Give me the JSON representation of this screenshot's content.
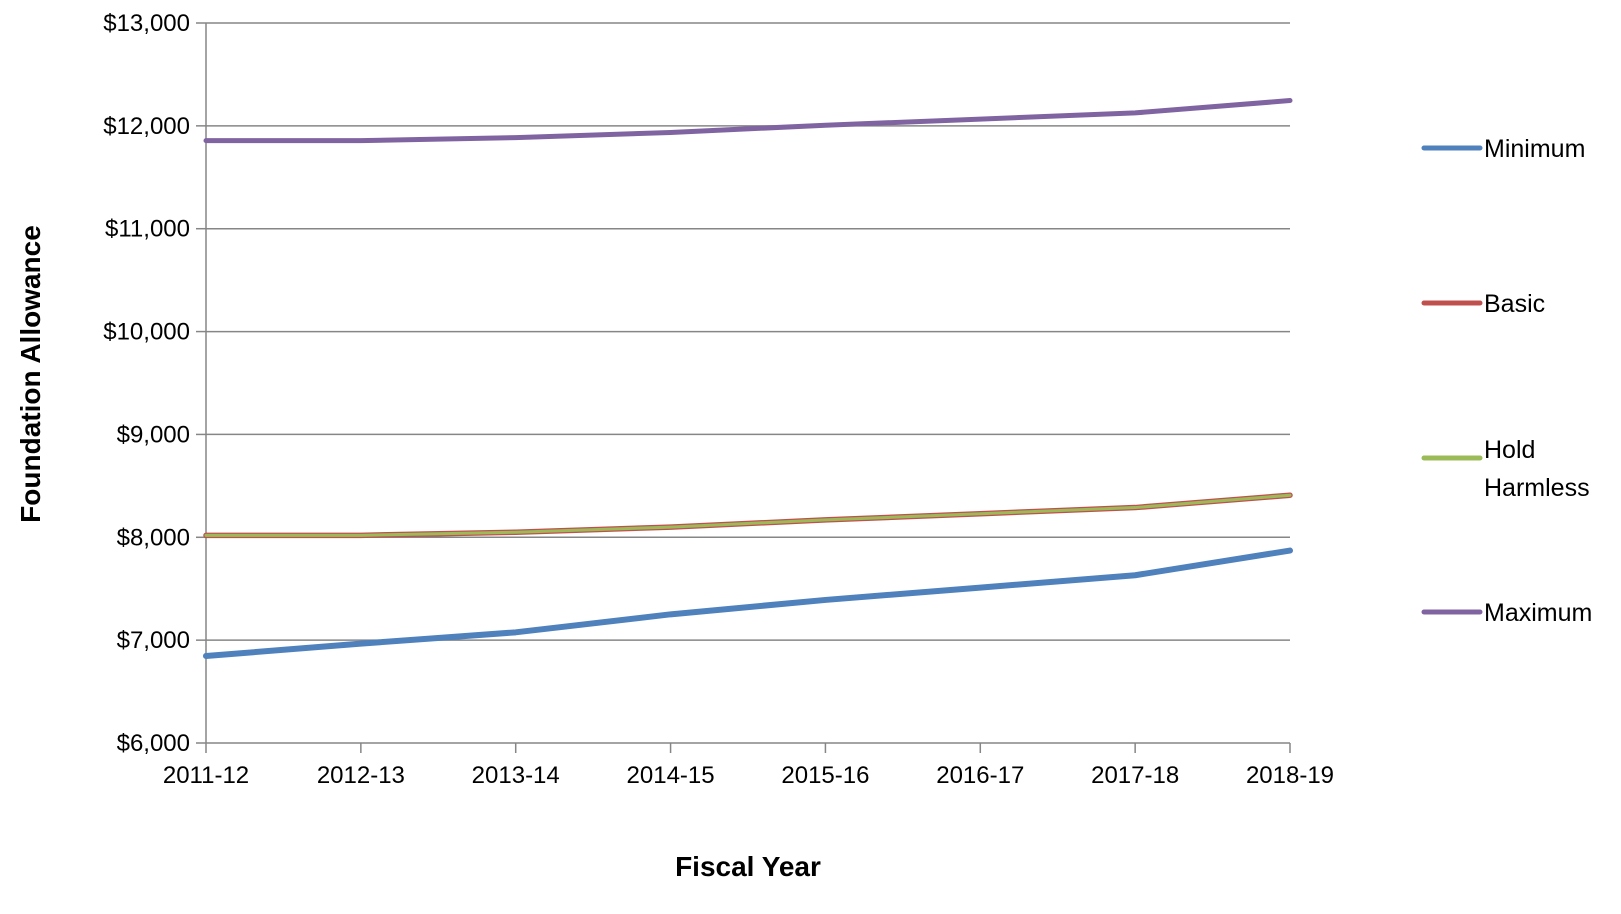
{
  "chart_data": {
    "type": "line",
    "title": "",
    "xlabel": "Fiscal Year",
    "ylabel": "Foundation Allowance",
    "categories": [
      "2011-12",
      "2012-13",
      "2013-14",
      "2014-15",
      "2015-16",
      "2016-17",
      "2017-18",
      "2018-19"
    ],
    "ylim": [
      6000,
      13000
    ],
    "y_ticks": [
      6000,
      7000,
      8000,
      9000,
      10000,
      11000,
      12000,
      13000
    ],
    "y_tick_labels": [
      "$6,000",
      "$7,000",
      "$8,000",
      "$9,000",
      "$10,000",
      "$11,000",
      "$12,000",
      "$13,000"
    ],
    "grid": "horizontal",
    "legend_position": "right",
    "series": [
      {
        "name": "Minimum",
        "color": "#4f81bd",
        "values": [
          6846,
          6966,
          7076,
          7251,
          7391,
          7511,
          7631,
          7871
        ]
      },
      {
        "name": "Basic",
        "color": "#c0504d",
        "values": [
          8019,
          8019,
          8049,
          8099,
          8169,
          8229,
          8289,
          8409
        ]
      },
      {
        "name": "Hold Harmless",
        "color": "#9bbb59",
        "values": [
          8019,
          8019,
          8049,
          8099,
          8169,
          8229,
          8289,
          8409
        ]
      },
      {
        "name": "Maximum",
        "color": "#8064a2",
        "values": [
          11856,
          11856,
          11886,
          11936,
          12006,
          12066,
          12126,
          12246
        ]
      }
    ]
  }
}
